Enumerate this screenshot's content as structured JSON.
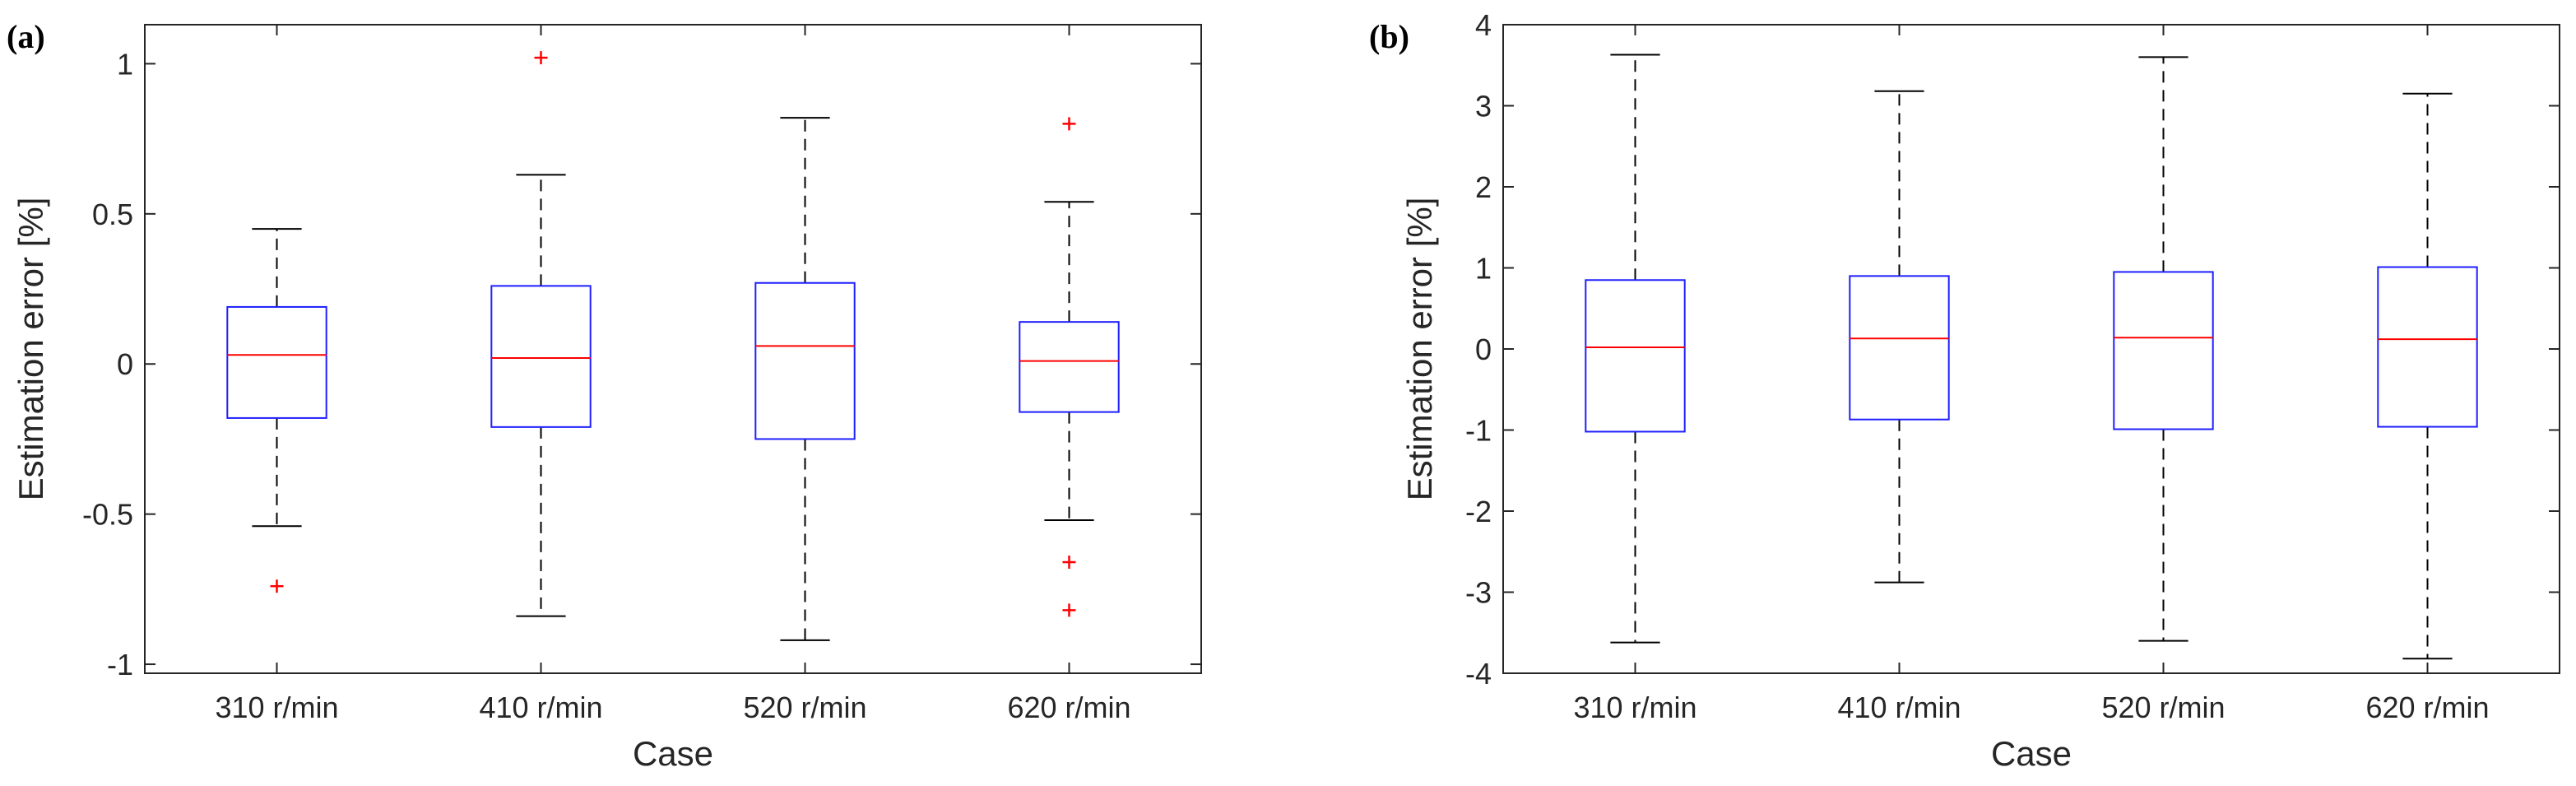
{
  "colors": {
    "box": "#1f1fff",
    "median": "#ff0000",
    "outlier": "#ff0000",
    "whisker": "#000000",
    "axis": "#262626"
  },
  "chart_data": [
    {
      "type": "boxplot",
      "panel_label": "(a)",
      "xlabel": "Case",
      "ylabel": "Estimation error [%]",
      "ylim": [
        -1.03,
        1.13
      ],
      "yticks": [
        -1,
        -0.5,
        0,
        0.5,
        1
      ],
      "ytick_labels": [
        "-1",
        "-0.5",
        "0",
        "0.5",
        "1"
      ],
      "categories": [
        "310 r/min",
        "410 r/min",
        "520 r/min",
        "620 r/min"
      ],
      "boxes": [
        {
          "whisker_low": -0.54,
          "q1": -0.18,
          "median": 0.03,
          "q3": 0.19,
          "whisker_high": 0.45,
          "outliers": [
            -0.74
          ]
        },
        {
          "whisker_low": -0.84,
          "q1": -0.21,
          "median": 0.02,
          "q3": 0.26,
          "whisker_high": 0.63,
          "outliers": [
            1.02
          ]
        },
        {
          "whisker_low": -0.92,
          "q1": -0.25,
          "median": 0.06,
          "q3": 0.27,
          "whisker_high": 0.82,
          "outliers": []
        },
        {
          "whisker_low": -0.52,
          "q1": -0.16,
          "median": 0.01,
          "q3": 0.14,
          "whisker_high": 0.54,
          "outliers": [
            -0.66,
            -0.82,
            0.8
          ]
        }
      ]
    },
    {
      "type": "boxplot",
      "panel_label": "(b)",
      "xlabel": "Case",
      "ylabel": "Estimation error [%]",
      "ylim": [
        -4,
        4
      ],
      "yticks": [
        -4,
        -3,
        -2,
        -1,
        0,
        1,
        2,
        3,
        4
      ],
      "ytick_labels": [
        "-4",
        "-3",
        "-2",
        "-1",
        "0",
        "1",
        "2",
        "3",
        "4"
      ],
      "categories": [
        "310 r/min",
        "410 r/min",
        "520 r/min",
        "620 r/min"
      ],
      "boxes": [
        {
          "whisker_low": -3.62,
          "q1": -1.02,
          "median": 0.02,
          "q3": 0.85,
          "whisker_high": 3.63,
          "outliers": []
        },
        {
          "whisker_low": -2.88,
          "q1": -0.87,
          "median": 0.13,
          "q3": 0.9,
          "whisker_high": 3.18,
          "outliers": []
        },
        {
          "whisker_low": -3.6,
          "q1": -0.99,
          "median": 0.14,
          "q3": 0.95,
          "whisker_high": 3.6,
          "outliers": []
        },
        {
          "whisker_low": -3.82,
          "q1": -0.96,
          "median": 0.12,
          "q3": 1.01,
          "whisker_high": 3.15,
          "outliers": []
        }
      ]
    }
  ]
}
